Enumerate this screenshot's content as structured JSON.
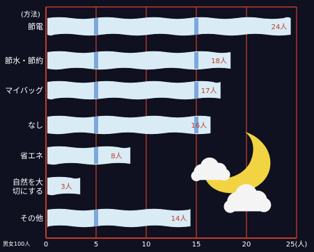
{
  "chart_data": {
    "type": "bar",
    "orientation": "horizontal",
    "title": "",
    "ylabel": "(方法)",
    "xlabel": "",
    "note": "男女100人",
    "categories": [
      "節電",
      "節水・節約",
      "マイバッグ",
      "なし",
      "省エネ",
      "自然を大切にする",
      "その他"
    ],
    "values": [
      24,
      18,
      17,
      16,
      8,
      3,
      14
    ],
    "value_labels": [
      "24人",
      "18人",
      "17人",
      "16人",
      "8人",
      "3人",
      "14人"
    ],
    "xticks": [
      0,
      5,
      10,
      15,
      20,
      "25(人)"
    ],
    "xlim": [
      0,
      25
    ],
    "grid": true,
    "decoration": "moon-and-clouds"
  },
  "colors": {
    "background": "#0f1020",
    "bar": "#d9ecf5",
    "bar_stripe": "#6b9bd8",
    "axis": "#c23b2a",
    "label": "#ffffff",
    "value_label": "#c0392b",
    "moon": "#f2d442",
    "cloud": "#f4f4f4"
  }
}
